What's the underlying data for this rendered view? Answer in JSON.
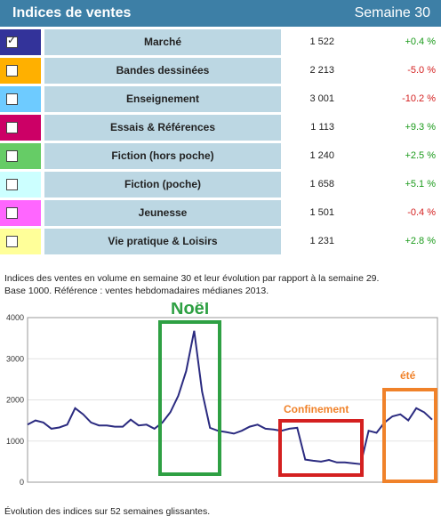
{
  "header": {
    "title": "Indices de ventes",
    "week": "Semaine 30"
  },
  "rows": [
    {
      "name": "Marché",
      "value": "1 522",
      "change": "+0.4 %",
      "color": "#33339a",
      "checked": true
    },
    {
      "name": "Bandes dessinées",
      "value": "2 213",
      "change": "-5.0 %",
      "color": "#ffb000",
      "checked": false
    },
    {
      "name": "Enseignement",
      "value": "3 001",
      "change": "-10.2 %",
      "color": "#6ecbff",
      "checked": false
    },
    {
      "name": "Essais & Références",
      "value": "1 113",
      "change": "+9.3 %",
      "color": "#cc0066",
      "checked": false
    },
    {
      "name": "Fiction (hors poche)",
      "value": "1 240",
      "change": "+2.5 %",
      "color": "#66cc66",
      "checked": false
    },
    {
      "name": "Fiction (poche)",
      "value": "1 658",
      "change": "+5.1 %",
      "color": "#ccffff",
      "checked": false
    },
    {
      "name": "Jeunesse",
      "value": "1 501",
      "change": "-0.4 %",
      "color": "#ff66ff",
      "checked": false
    },
    {
      "name": "Vie pratique & Loisirs",
      "value": "1 231",
      "change": "+2.8 %",
      "color": "#ffff99",
      "checked": false
    }
  ],
  "description": {
    "line1": "Indices des ventes en volume en semaine 30 et leur évolution par rapport à la semaine 29.",
    "line2": "Base 1000. Référence : ventes hebdomadaires médianes 2013."
  },
  "annotations": {
    "noel": "Noël",
    "confinement": "Confinement",
    "ete": "été"
  },
  "footer": "Évolution des indices sur 52 semaines glissantes.",
  "chart_data": {
    "type": "line",
    "ylim": [
      0,
      4000
    ],
    "yticks": [
      "0",
      "1000",
      "2000",
      "3000",
      "4000"
    ],
    "series": [
      {
        "values": [
          1400,
          1500,
          1450,
          1300,
          1330,
          1400,
          1800,
          1650,
          1450,
          1380,
          1380,
          1350,
          1350,
          1520,
          1380,
          1400,
          1300,
          1450,
          1700,
          2100,
          2700,
          3680,
          2200,
          1320,
          1250,
          1220,
          1180,
          1250,
          1350,
          1400,
          1300,
          1280,
          1250,
          1300,
          1320,
          550,
          520,
          500,
          540,
          480,
          480,
          460,
          440,
          1250,
          1200,
          1450,
          1600,
          1650,
          1500,
          1800,
          1700,
          1520
        ]
      }
    ]
  }
}
